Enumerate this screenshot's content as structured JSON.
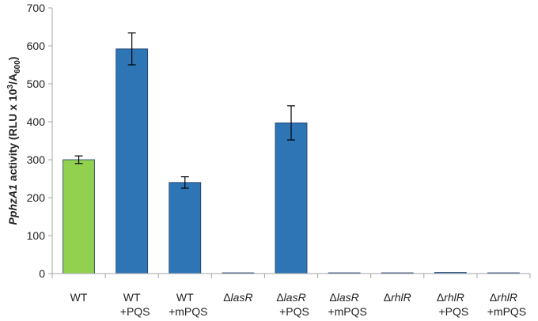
{
  "chart_data": {
    "type": "bar",
    "title": "",
    "ylabel_parts": {
      "italic": "PphzA1",
      "text": " activity (RLU x 10",
      "sup": "3",
      "after": "/A",
      "sub": "600",
      "close": ")"
    },
    "ylim": [
      0,
      700
    ],
    "yticks": [
      0,
      100,
      200,
      300,
      400,
      500,
      600,
      700
    ],
    "grid": false,
    "categories": [
      {
        "line1_prefix": "",
        "line1_italic": "",
        "line1_plain": "WT",
        "line2": ""
      },
      {
        "line1_prefix": "",
        "line1_italic": "",
        "line1_plain": "WT",
        "line2": "+PQS"
      },
      {
        "line1_prefix": "",
        "line1_italic": "",
        "line1_plain": "WT",
        "line2": "+mPQS"
      },
      {
        "line1_prefix": "Δ",
        "line1_italic": "lasR",
        "line1_plain": "",
        "line2": ""
      },
      {
        "line1_prefix": "Δ",
        "line1_italic": "lasR",
        "line1_plain": "",
        "line2": "+PQS"
      },
      {
        "line1_prefix": "Δ",
        "line1_italic": "lasR",
        "line1_plain": "",
        "line2": "+mPQS"
      },
      {
        "line1_prefix": "Δ",
        "line1_italic": "rhlR",
        "line1_plain": "",
        "line2": ""
      },
      {
        "line1_prefix": "Δ",
        "line1_italic": "rhlR",
        "line1_plain": "",
        "line2": "+PQS"
      },
      {
        "line1_prefix": "Δ",
        "line1_italic": "rhlR",
        "line1_plain": "",
        "line2": "+mPQS"
      }
    ],
    "values": [
      300,
      592,
      240,
      2,
      397,
      2,
      2,
      3,
      2
    ],
    "errors": [
      10,
      42,
      15,
      0,
      45,
      0,
      0,
      0,
      0
    ],
    "bar_colors": [
      "#92d050",
      "#2e75b6",
      "#2e75b6",
      "#2e75b6",
      "#2e75b6",
      "#2e75b6",
      "#2e75b6",
      "#2e75b6",
      "#2e75b6"
    ],
    "bar_stroke": "#1f3864",
    "axis_color": "#a6a6a6"
  }
}
